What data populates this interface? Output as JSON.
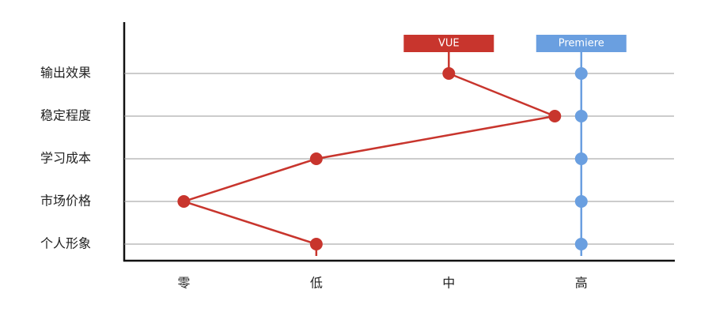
{
  "chart_data": {
    "type": "line",
    "orientation": "horizontal",
    "categories": [
      "输出效果",
      "稳定程度",
      "学习成本",
      "市场价格",
      "个人形象"
    ],
    "series": [
      {
        "name": "VUE",
        "color": "#c8352d",
        "values": [
          2,
          2.8,
          1,
          0,
          1
        ]
      },
      {
        "name": "Premiere",
        "color": "#6a9fe0",
        "values": [
          3,
          3,
          3,
          3,
          3
        ]
      }
    ],
    "xlim": [
      -0.45,
      3.7
    ],
    "xticks": [
      {
        "value": 0,
        "label": "零"
      },
      {
        "value": 1,
        "label": "低"
      },
      {
        "value": 2,
        "label": "中"
      },
      {
        "value": 3,
        "label": "高"
      }
    ],
    "grid": true
  }
}
